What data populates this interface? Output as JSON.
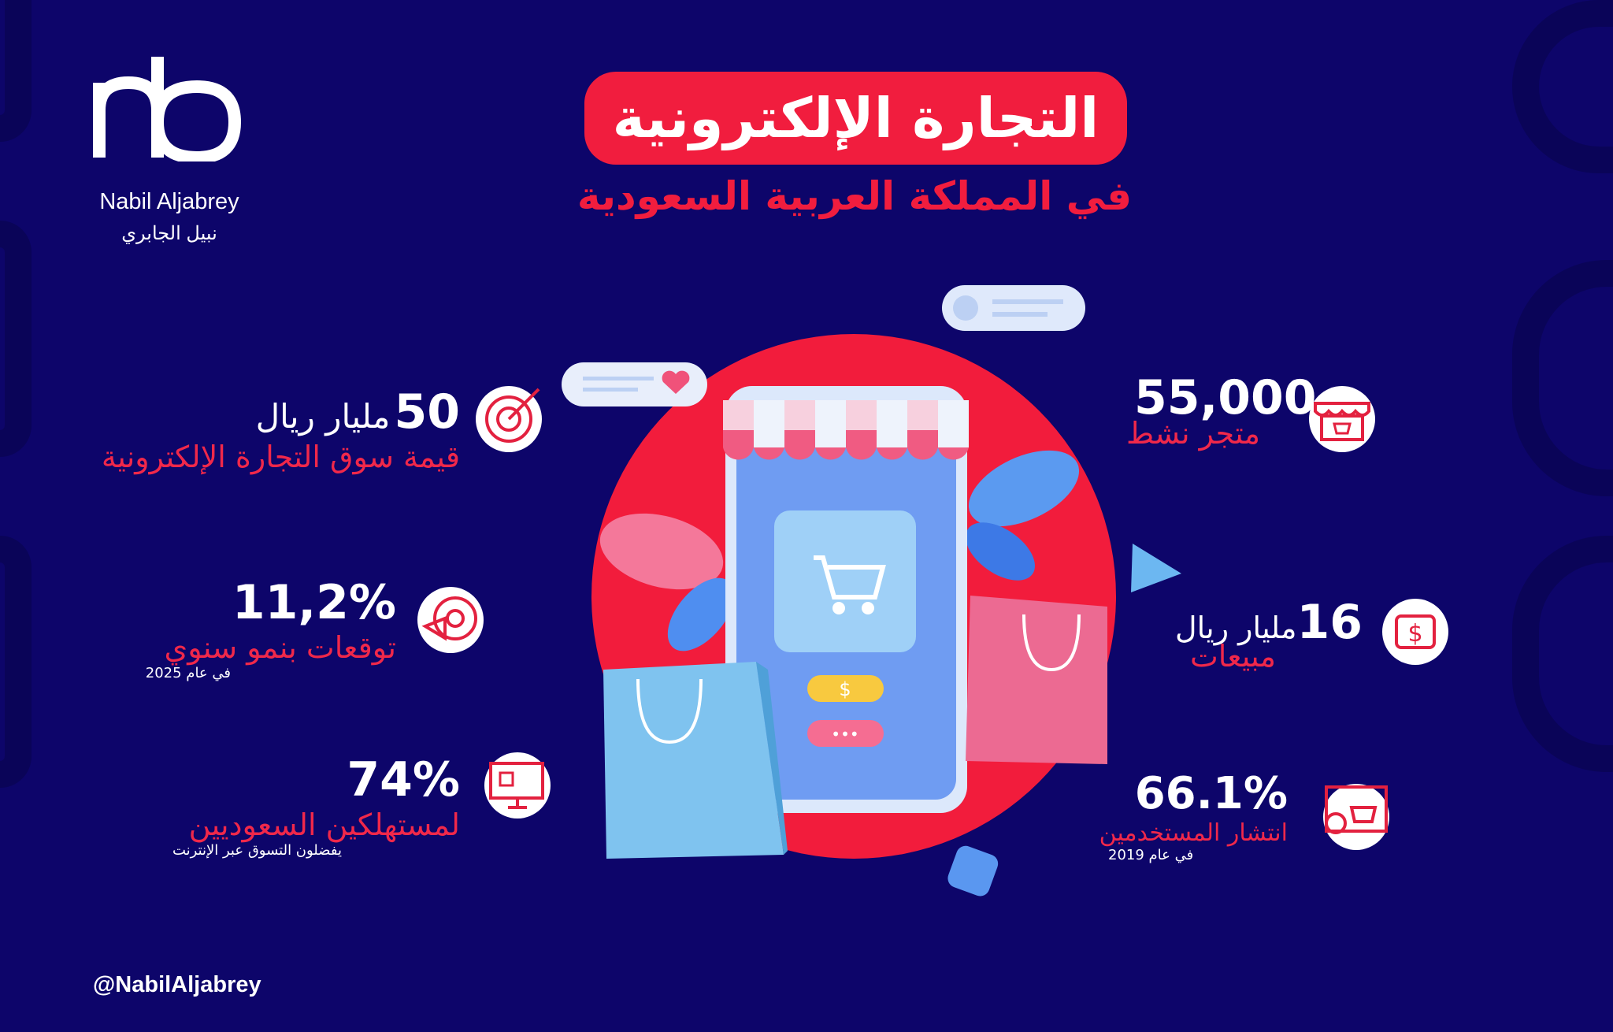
{
  "brand": {
    "name_en": "Nabil Aljabrey",
    "name_ar": "نبيل الجابري",
    "handle": "@NabilAljabrey",
    "logo_letters": "nb"
  },
  "title": "التجارة الإلكترونية",
  "subtitle": "في المملكة العربية السعودية",
  "colors": {
    "background": "#0d056a",
    "accent": "#f11d3e",
    "phone": "#6f9cf2"
  },
  "stats_left": [
    {
      "value": "50",
      "unit": "مليار ريال",
      "label": "قيمة سوق التجارة الإلكترونية",
      "icon": "target-box-icon"
    },
    {
      "value": "11,2%",
      "label": "توقعات بنمو سنوي",
      "note": "في عام 2025",
      "icon": "target-megaphone-icon"
    },
    {
      "value": "74%",
      "label": "لمستهلكين السعوديين",
      "note": "يفضلون التسوق عبر الإنترنت",
      "icon": "monitor-click-icon"
    }
  ],
  "stats_right": [
    {
      "value": "55,000",
      "label": "متجر نشط",
      "icon": "storefront-icon"
    },
    {
      "value": "16",
      "unit": "مليار ريال",
      "label": "مبيعات",
      "icon": "dollar-exchange-icon"
    },
    {
      "value": "66.1%",
      "label": "انتشار المستخدمين",
      "note": "في عام 2019",
      "icon": "user-basket-icon"
    }
  ],
  "illustration": {
    "price_symbol": "$",
    "dots": "•••"
  }
}
